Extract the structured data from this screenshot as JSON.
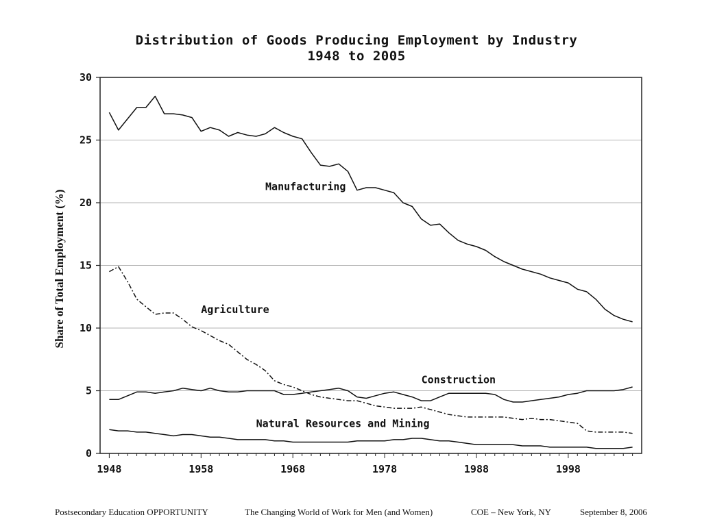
{
  "chart_data": {
    "type": "line",
    "title": "Distribution of Goods Producing Employment by Industry",
    "subtitle": "1948 to 2005",
    "xlabel": "",
    "ylabel": "Share of Total Employment (%)",
    "xlim": [
      1947,
      2006
    ],
    "ylim": [
      0,
      30
    ],
    "x_ticks": [
      1948,
      1958,
      1968,
      1978,
      1988,
      1998
    ],
    "y_ticks": [
      0,
      5,
      10,
      15,
      20,
      25,
      30
    ],
    "grid": "horizontal",
    "legend": "inline labels",
    "x": [
      1948,
      1949,
      1950,
      1951,
      1952,
      1953,
      1954,
      1955,
      1956,
      1957,
      1958,
      1959,
      1960,
      1961,
      1962,
      1963,
      1964,
      1965,
      1966,
      1967,
      1968,
      1969,
      1970,
      1971,
      1972,
      1973,
      1974,
      1975,
      1976,
      1977,
      1978,
      1979,
      1980,
      1981,
      1982,
      1983,
      1984,
      1985,
      1986,
      1987,
      1988,
      1989,
      1990,
      1991,
      1992,
      1993,
      1994,
      1995,
      1996,
      1997,
      1998,
      1999,
      2000,
      2001,
      2002,
      2003,
      2004,
      2005
    ],
    "series": [
      {
        "name": "Manufacturing",
        "style": "solid",
        "label_at": [
          1965,
          21
        ],
        "values": [
          27.2,
          25.8,
          26.7,
          27.6,
          27.6,
          28.5,
          27.1,
          27.1,
          27.0,
          26.8,
          25.7,
          26.0,
          25.8,
          25.3,
          25.6,
          25.4,
          25.3,
          25.5,
          26.0,
          25.6,
          25.3,
          25.1,
          24.0,
          23.0,
          22.9,
          23.1,
          22.5,
          21.0,
          21.2,
          21.2,
          21.0,
          20.8,
          20.0,
          19.7,
          18.7,
          18.2,
          18.3,
          17.6,
          17.0,
          16.7,
          16.5,
          16.2,
          15.7,
          15.3,
          15.0,
          14.7,
          14.5,
          14.3,
          14.0,
          13.8,
          13.6,
          13.1,
          12.9,
          12.3,
          11.5,
          11.0,
          10.7,
          10.5
        ]
      },
      {
        "name": "Agriculture",
        "style": "dash-dot",
        "label_at": [
          1958,
          11.2
        ],
        "values": [
          14.5,
          14.9,
          13.7,
          12.3,
          11.7,
          11.1,
          11.2,
          11.2,
          10.7,
          10.1,
          9.8,
          9.4,
          9.0,
          8.7,
          8.1,
          7.5,
          7.1,
          6.6,
          5.8,
          5.5,
          5.3,
          5.0,
          4.7,
          4.5,
          4.4,
          4.3,
          4.2,
          4.2,
          4.0,
          3.8,
          3.7,
          3.6,
          3.6,
          3.6,
          3.7,
          3.5,
          3.3,
          3.1,
          3.0,
          2.9,
          2.9,
          2.9,
          2.9,
          2.9,
          2.8,
          2.7,
          2.8,
          2.7,
          2.7,
          2.6,
          2.5,
          2.4,
          1.8,
          1.7,
          1.7,
          1.7,
          1.7,
          1.6
        ]
      },
      {
        "name": "Construction",
        "style": "solid",
        "label_at": [
          1982,
          5.6
        ],
        "values": [
          4.3,
          4.3,
          4.6,
          4.9,
          4.9,
          4.8,
          4.9,
          5.0,
          5.2,
          5.1,
          5.0,
          5.2,
          5.0,
          4.9,
          4.9,
          5.0,
          5.0,
          5.0,
          5.0,
          4.7,
          4.7,
          4.8,
          4.9,
          5.0,
          5.1,
          5.2,
          5.0,
          4.5,
          4.4,
          4.6,
          4.8,
          4.9,
          4.7,
          4.5,
          4.2,
          4.2,
          4.5,
          4.8,
          4.8,
          4.8,
          4.8,
          4.8,
          4.7,
          4.3,
          4.1,
          4.1,
          4.2,
          4.3,
          4.4,
          4.5,
          4.7,
          4.8,
          5.0,
          5.0,
          5.0,
          5.0,
          5.1,
          5.3
        ]
      },
      {
        "name": "Natural Resources and Mining",
        "style": "solid",
        "label_at": [
          1964,
          2.1
        ],
        "values": [
          1.9,
          1.8,
          1.8,
          1.7,
          1.7,
          1.6,
          1.5,
          1.4,
          1.5,
          1.5,
          1.4,
          1.3,
          1.3,
          1.2,
          1.1,
          1.1,
          1.1,
          1.1,
          1.0,
          1.0,
          0.9,
          0.9,
          0.9,
          0.9,
          0.9,
          0.9,
          0.9,
          1.0,
          1.0,
          1.0,
          1.0,
          1.1,
          1.1,
          1.2,
          1.2,
          1.1,
          1.0,
          1.0,
          0.9,
          0.8,
          0.7,
          0.7,
          0.7,
          0.7,
          0.7,
          0.6,
          0.6,
          0.6,
          0.5,
          0.5,
          0.5,
          0.5,
          0.5,
          0.4,
          0.4,
          0.4,
          0.4,
          0.5
        ]
      }
    ]
  },
  "footer": {
    "left": "Postsecondary Education OPPORTUNITY",
    "center": "The Changing World of Work for Men (and Women)",
    "location": "COE – New York, NY",
    "date": "September 8, 2006"
  }
}
